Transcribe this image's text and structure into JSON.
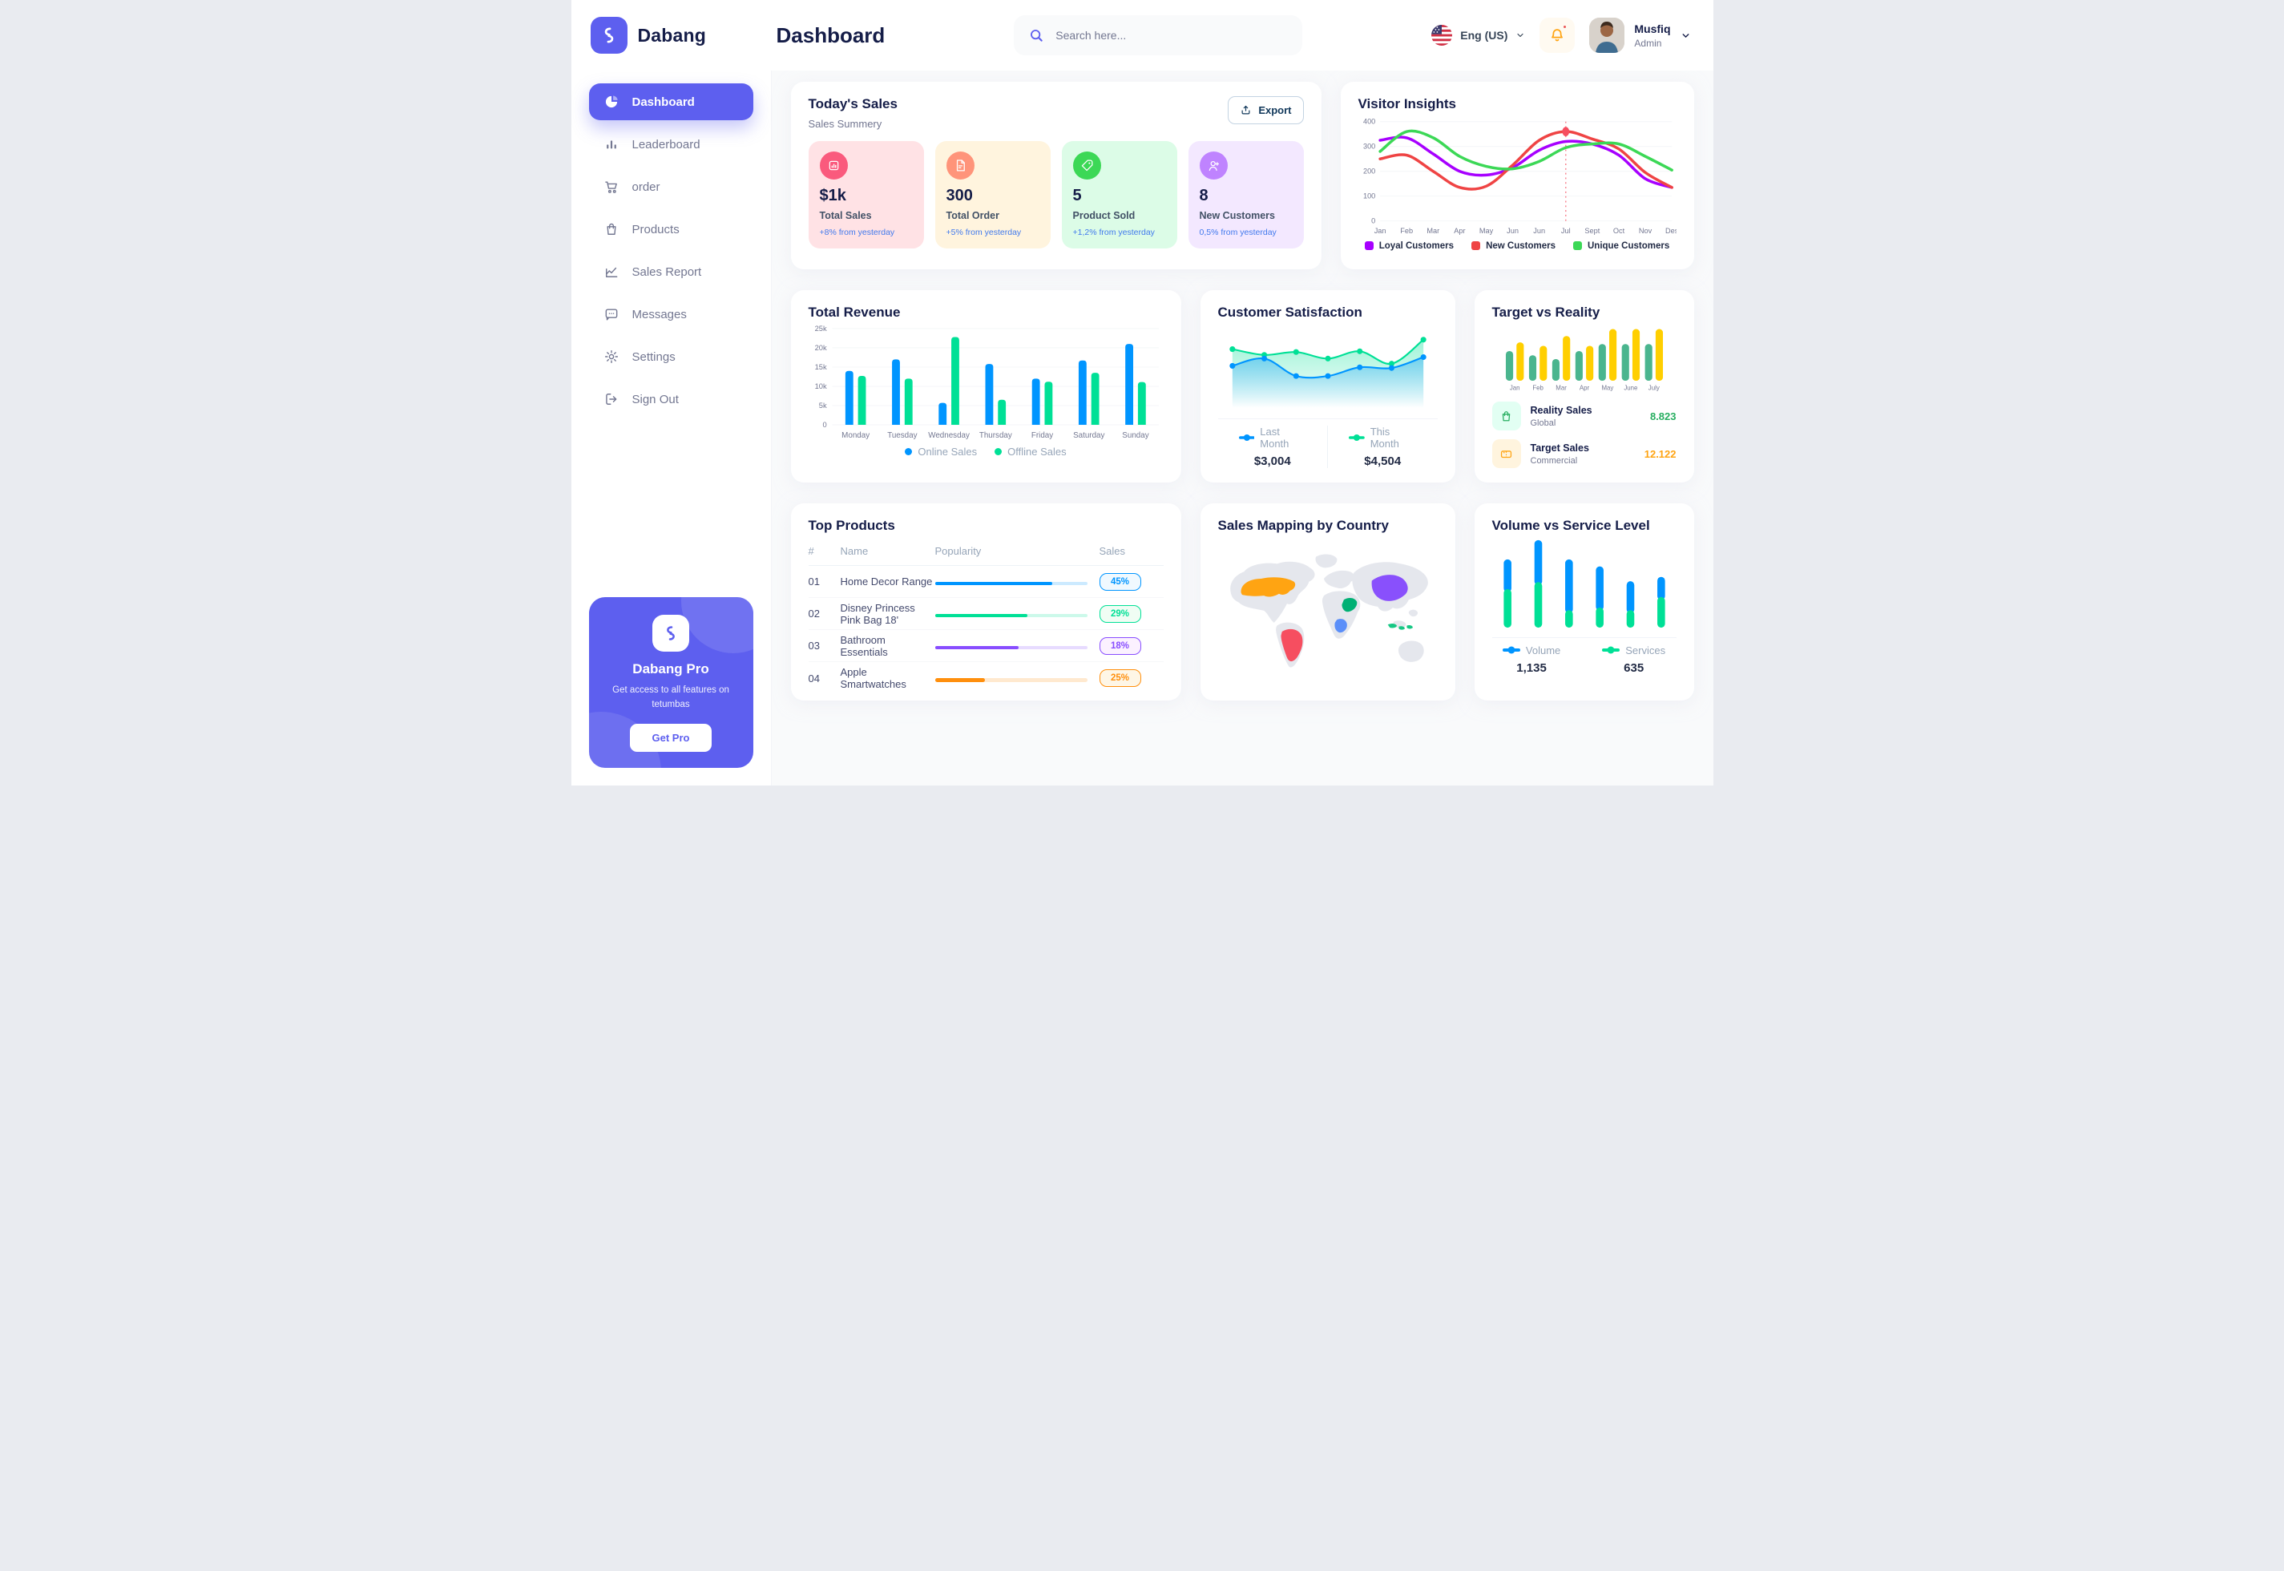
{
  "app": {
    "name": "Dabang"
  },
  "header": {
    "title": "Dashboard",
    "search_placeholder": "Search here...",
    "language": "Eng (US)",
    "user": {
      "name": "Musfiq",
      "role": "Admin"
    }
  },
  "sidebar": {
    "items": [
      {
        "label": "Dashboard",
        "icon": "dashboard",
        "active": true
      },
      {
        "label": "Leaderboard",
        "icon": "leaderboard",
        "active": false
      },
      {
        "label": "order",
        "icon": "order",
        "active": false
      },
      {
        "label": "Products",
        "icon": "products",
        "active": false
      },
      {
        "label": "Sales Report",
        "icon": "sales",
        "active": false
      },
      {
        "label": "Messages",
        "icon": "messages",
        "active": false
      },
      {
        "label": "Settings",
        "icon": "settings",
        "active": false
      },
      {
        "label": "Sign Out",
        "icon": "signout",
        "active": false
      }
    ],
    "promo": {
      "title": "Dabang Pro",
      "subtitle": "Get access to all features on tetumbas",
      "cta": "Get Pro"
    }
  },
  "today_sales": {
    "title": "Today's Sales",
    "subtitle": "Sales Summery",
    "export_label": "Export",
    "delta_color": "#4079ED",
    "cards": [
      {
        "value": "$1k",
        "label": "Total Sales",
        "delta": "+8% from yesterday",
        "bg": "#FFE2E5",
        "icon_bg": "#FA5A7D",
        "icon": "stat"
      },
      {
        "value": "300",
        "label": "Total Order",
        "delta": "+5% from yesterday",
        "bg": "#FFF4DE",
        "icon_bg": "#FF947A",
        "icon": "file"
      },
      {
        "value": "5",
        "label": "Product Sold",
        "delta": "+1,2% from yesterday",
        "bg": "#DCFCE7",
        "icon_bg": "#3CD856",
        "icon": "tag"
      },
      {
        "value": "8",
        "label": "New Customers",
        "delta": "0,5% from yesterday",
        "bg": "#F3E8FF",
        "icon_bg": "#BF83FF",
        "icon": "userplus"
      }
    ]
  },
  "products": {
    "title": "Top Products",
    "headers": [
      "#",
      "Name",
      "Popularity",
      "Sales"
    ],
    "rows": [
      {
        "num": "01",
        "name": "Home Decor Range",
        "popularity": 77,
        "sales": "45%",
        "color": "#0095FF",
        "badge_bg": "#F0F9FF"
      },
      {
        "num": "02",
        "name": "Disney Princess Pink Bag 18'",
        "popularity": 61,
        "sales": "29%",
        "color": "#00E096",
        "badge_bg": "#F0FDF4"
      },
      {
        "num": "03",
        "name": "Bathroom Essentials",
        "popularity": 55,
        "sales": "18%",
        "color": "#884DFF",
        "badge_bg": "#FBF1FF"
      },
      {
        "num": "04",
        "name": "Apple Smartwatches",
        "popularity": 33,
        "sales": "25%",
        "color": "#FF8F0D",
        "badge_bg": "#FEF6E6"
      }
    ]
  },
  "chart_data": [
    {
      "id": "visitor_insights",
      "type": "line",
      "title": "Visitor Insights",
      "x": [
        "Jan",
        "Feb",
        "Mar",
        "Apr",
        "May",
        "Jun",
        "Jun",
        "Jul",
        "Sept",
        "Oct",
        "Nov",
        "Des"
      ],
      "ylim": [
        0,
        400
      ],
      "yticks": [
        0,
        100,
        200,
        300,
        400
      ],
      "grid": true,
      "legend_position": "bottom",
      "series": [
        {
          "name": "Loyal Customers",
          "color": "#A700FF",
          "values": [
            325,
            335,
            270,
            200,
            185,
            215,
            285,
            320,
            310,
            265,
            170,
            135
          ]
        },
        {
          "name": "New Customers",
          "color": "#EF4444",
          "values": [
            250,
            265,
            200,
            135,
            140,
            225,
            325,
            360,
            330,
            290,
            195,
            135
          ]
        },
        {
          "name": "Unique Customers",
          "color": "#3CD856",
          "values": [
            280,
            360,
            335,
            260,
            220,
            210,
            240,
            295,
            310,
            310,
            260,
            205
          ]
        }
      ],
      "marker": {
        "series": "New Customers",
        "index": 7,
        "value": 360,
        "color": "#F64E60"
      }
    },
    {
      "id": "total_revenue",
      "type": "bar",
      "title": "Total Revenue",
      "categories": [
        "Monday",
        "Tuesday",
        "Wednesday",
        "Thursday",
        "Friday",
        "Saturday",
        "Sunday"
      ],
      "ylim": [
        0,
        25000
      ],
      "ytick_labels": [
        "0",
        "5k",
        "10k",
        "15k",
        "20k",
        "25k"
      ],
      "grid": true,
      "legend_position": "bottom",
      "series": [
        {
          "name": "Online Sales",
          "color": "#0095FF",
          "values": [
            14000,
            17000,
            5700,
            15800,
            12000,
            16700,
            21000
          ]
        },
        {
          "name": "Offline Sales",
          "color": "#00E096",
          "values": [
            12700,
            12000,
            22800,
            6500,
            11200,
            13500,
            11100
          ]
        }
      ]
    },
    {
      "id": "customer_satisfaction",
      "type": "area",
      "title": "Customer Satisfaction",
      "ylim": [
        0,
        100
      ],
      "legend_position": "bottom",
      "series": [
        {
          "name": "Last Month",
          "color": "#0095FF",
          "total": "$3,004",
          "values": [
            52,
            62,
            38,
            38,
            50,
            49,
            64
          ]
        },
        {
          "name": "This Month",
          "color": "#00E096",
          "total": "$4,504",
          "values": [
            75,
            67,
            71,
            62,
            72,
            55,
            88
          ]
        }
      ]
    },
    {
      "id": "target_vs_reality",
      "type": "bar",
      "title": "Target vs Reality",
      "categories": [
        "Jan",
        "Feb",
        "Mar",
        "Apr",
        "May",
        "June",
        "July"
      ],
      "ylim": [
        0,
        16
      ],
      "legend_position": "list",
      "series": [
        {
          "name": "Reality Sales",
          "color": "#4AB58E",
          "values": [
            8.5,
            7.3,
            6.2,
            8.5,
            10.5,
            10.5,
            10.5
          ]
        },
        {
          "name": "Target Sales",
          "color": "#FFCF00",
          "values": [
            11,
            10,
            12.8,
            10,
            14.8,
            14.8,
            14.8
          ]
        }
      ],
      "summary": [
        {
          "label": "Reality Sales",
          "sublabel": "Global",
          "value": "8.823",
          "color": "#27AE60",
          "icon_bg": "#E2FFF3",
          "icon": "bag"
        },
        {
          "label": "Target Sales",
          "sublabel": "Commercial",
          "value": "12.122",
          "color": "#FFA412",
          "icon_bg": "#FFF4DE",
          "icon": "ticket"
        }
      ]
    },
    {
      "id": "volume_vs_service",
      "type": "stacked-bar",
      "title": "Volume vs Service Level",
      "ylim": [
        0,
        100
      ],
      "legend_position": "bottom",
      "series": [
        {
          "name": "Volume",
          "color": "#0095FF",
          "total": "1,135",
          "values": [
            34,
            48,
            58,
            47,
            33,
            23
          ]
        },
        {
          "name": "Services",
          "color": "#00E096",
          "total": "635",
          "values": [
            44,
            52,
            20,
            23,
            20,
            35
          ]
        }
      ]
    },
    {
      "id": "sales_mapping",
      "type": "map",
      "title": "Sales Mapping by Country",
      "countries": [
        {
          "name": "United States",
          "color": "#FFA412"
        },
        {
          "name": "Brazil",
          "color": "#F64E60"
        },
        {
          "name": "Saudi Arabia",
          "color": "#00B074"
        },
        {
          "name": "DR Congo",
          "color": "#5B8FF9"
        },
        {
          "name": "China",
          "color": "#8950FC"
        },
        {
          "name": "Indonesia",
          "color": "#16C784"
        }
      ]
    }
  ]
}
